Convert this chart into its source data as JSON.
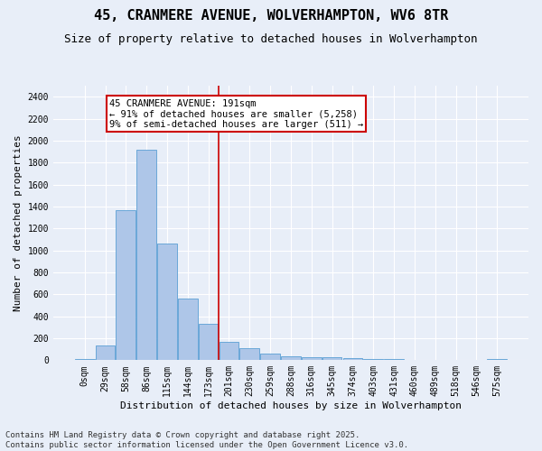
{
  "title1": "45, CRANMERE AVENUE, WOLVERHAMPTON, WV6 8TR",
  "title2": "Size of property relative to detached houses in Wolverhampton",
  "xlabel": "Distribution of detached houses by size in Wolverhampton",
  "ylabel": "Number of detached properties",
  "categories": [
    "0sqm",
    "29sqm",
    "58sqm",
    "86sqm",
    "115sqm",
    "144sqm",
    "173sqm",
    "201sqm",
    "230sqm",
    "259sqm",
    "288sqm",
    "316sqm",
    "345sqm",
    "374sqm",
    "403sqm",
    "431sqm",
    "460sqm",
    "489sqm",
    "518sqm",
    "546sqm",
    "575sqm"
  ],
  "bar_heights": [
    15,
    135,
    1365,
    1915,
    1060,
    560,
    335,
    170,
    110,
    60,
    38,
    30,
    25,
    20,
    15,
    10,
    5,
    5,
    5,
    2,
    15
  ],
  "bar_color": "#aec6e8",
  "bar_edge_color": "#5a9fd4",
  "annotation_text_line1": "45 CRANMERE AVENUE: 191sqm",
  "annotation_text_line2": "← 91% of detached houses are smaller (5,258)",
  "annotation_text_line3": "9% of semi-detached houses are larger (511) →",
  "annotation_box_color": "#ffffff",
  "annotation_box_edge": "#cc0000",
  "vline_color": "#cc0000",
  "vline_x": 6.5,
  "ylim": [
    0,
    2500
  ],
  "yticks": [
    0,
    200,
    400,
    600,
    800,
    1000,
    1200,
    1400,
    1600,
    1800,
    2000,
    2200,
    2400
  ],
  "background_color": "#e8eef8",
  "grid_color": "#ffffff",
  "footer1": "Contains HM Land Registry data © Crown copyright and database right 2025.",
  "footer2": "Contains public sector information licensed under the Open Government Licence v3.0.",
  "title_fontsize": 11,
  "subtitle_fontsize": 9,
  "ylabel_fontsize": 8,
  "xlabel_fontsize": 8,
  "tick_fontsize": 7,
  "footer_fontsize": 6.5,
  "annotation_fontsize": 7.5
}
